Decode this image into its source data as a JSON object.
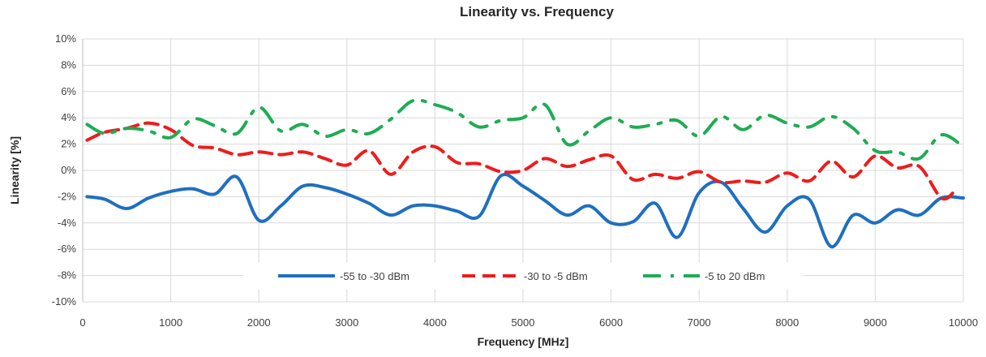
{
  "chart_data": {
    "type": "line",
    "title": "Linearity vs. Frequency",
    "xlabel": "Frequency [MHz]",
    "ylabel": "Linearity [%]",
    "xlim": [
      0,
      10000
    ],
    "ylim": [
      -10,
      10
    ],
    "x_ticks": [
      0,
      1000,
      2000,
      3000,
      4000,
      5000,
      6000,
      7000,
      8000,
      9000,
      10000
    ],
    "y_ticks": [
      -10,
      -8,
      -6,
      -4,
      -2,
      0,
      2,
      4,
      6,
      8,
      10
    ],
    "x_tick_labels": [
      "0",
      "1000",
      "2000",
      "3000",
      "4000",
      "5000",
      "6000",
      "7000",
      "8000",
      "9000",
      "10000"
    ],
    "y_tick_labels": [
      "-10%",
      "-8%",
      "-6%",
      "-4%",
      "-2%",
      "0%",
      "2%",
      "4%",
      "6%",
      "8%",
      "10%"
    ],
    "grid": true,
    "legend_position": "bottom-center",
    "series": [
      {
        "name": "-55 to -30 dBm",
        "color": "#1f6fbf",
        "style": "solid",
        "points": [
          [
            50,
            -2.0
          ],
          [
            250,
            -2.2
          ],
          [
            500,
            -2.9
          ],
          [
            750,
            -2.1
          ],
          [
            1000,
            -1.6
          ],
          [
            1250,
            -1.4
          ],
          [
            1500,
            -1.8
          ],
          [
            1750,
            -0.5
          ],
          [
            2000,
            -3.8
          ],
          [
            2250,
            -2.7
          ],
          [
            2500,
            -1.2
          ],
          [
            2750,
            -1.3
          ],
          [
            3000,
            -1.8
          ],
          [
            3250,
            -2.5
          ],
          [
            3500,
            -3.4
          ],
          [
            3750,
            -2.7
          ],
          [
            4000,
            -2.7
          ],
          [
            4250,
            -3.1
          ],
          [
            4500,
            -3.5
          ],
          [
            4750,
            -0.4
          ],
          [
            5000,
            -1.2
          ],
          [
            5250,
            -2.3
          ],
          [
            5500,
            -3.4
          ],
          [
            5750,
            -2.7
          ],
          [
            6000,
            -4.0
          ],
          [
            6250,
            -3.9
          ],
          [
            6500,
            -2.5
          ],
          [
            6750,
            -5.1
          ],
          [
            7000,
            -1.7
          ],
          [
            7250,
            -0.9
          ],
          [
            7500,
            -2.9
          ],
          [
            7750,
            -4.7
          ],
          [
            8000,
            -2.7
          ],
          [
            8250,
            -2.2
          ],
          [
            8500,
            -5.8
          ],
          [
            8750,
            -3.4
          ],
          [
            9000,
            -4.0
          ],
          [
            9250,
            -3.0
          ],
          [
            9500,
            -3.4
          ],
          [
            9750,
            -2.1
          ],
          [
            10000,
            -2.1
          ]
        ]
      },
      {
        "name": "-30 to -5 dBm",
        "color": "#ee1c1c",
        "style": "dashed",
        "points": [
          [
            50,
            2.3
          ],
          [
            250,
            2.9
          ],
          [
            500,
            3.2
          ],
          [
            750,
            3.6
          ],
          [
            1000,
            3.1
          ],
          [
            1250,
            1.9
          ],
          [
            1500,
            1.7
          ],
          [
            1750,
            1.2
          ],
          [
            2000,
            1.4
          ],
          [
            2250,
            1.2
          ],
          [
            2500,
            1.4
          ],
          [
            2750,
            0.9
          ],
          [
            3000,
            0.4
          ],
          [
            3250,
            1.5
          ],
          [
            3500,
            -0.3
          ],
          [
            3750,
            1.4
          ],
          [
            4000,
            1.8
          ],
          [
            4250,
            0.6
          ],
          [
            4500,
            0.5
          ],
          [
            4750,
            -0.1
          ],
          [
            5000,
            0.0
          ],
          [
            5250,
            0.9
          ],
          [
            5500,
            0.3
          ],
          [
            5750,
            0.8
          ],
          [
            6000,
            1.1
          ],
          [
            6250,
            -0.7
          ],
          [
            6500,
            -0.3
          ],
          [
            6750,
            -0.6
          ],
          [
            7000,
            -0.1
          ],
          [
            7250,
            -0.9
          ],
          [
            7500,
            -0.8
          ],
          [
            7750,
            -0.9
          ],
          [
            8000,
            -0.2
          ],
          [
            8250,
            -0.8
          ],
          [
            8500,
            0.7
          ],
          [
            8750,
            -0.5
          ],
          [
            9000,
            1.1
          ],
          [
            9250,
            0.2
          ],
          [
            9500,
            0.3
          ],
          [
            9750,
            -2.1
          ],
          [
            9900,
            -1.6
          ]
        ]
      },
      {
        "name": "-5 to 20 dBm",
        "color": "#1fac54",
        "style": "dashdot",
        "points": [
          [
            50,
            3.5
          ],
          [
            250,
            2.8
          ],
          [
            500,
            3.2
          ],
          [
            750,
            3.0
          ],
          [
            1000,
            2.5
          ],
          [
            1250,
            3.9
          ],
          [
            1500,
            3.4
          ],
          [
            1750,
            2.8
          ],
          [
            2000,
            4.8
          ],
          [
            2250,
            3.0
          ],
          [
            2500,
            3.5
          ],
          [
            2750,
            2.6
          ],
          [
            3000,
            3.1
          ],
          [
            3250,
            2.8
          ],
          [
            3500,
            3.9
          ],
          [
            3750,
            5.3
          ],
          [
            4000,
            5.0
          ],
          [
            4250,
            4.4
          ],
          [
            4500,
            3.3
          ],
          [
            4750,
            3.8
          ],
          [
            5000,
            4.0
          ],
          [
            5250,
            5.0
          ],
          [
            5500,
            2.0
          ],
          [
            5750,
            3.0
          ],
          [
            6000,
            4.0
          ],
          [
            6250,
            3.3
          ],
          [
            6500,
            3.5
          ],
          [
            6750,
            3.8
          ],
          [
            7000,
            2.6
          ],
          [
            7250,
            4.1
          ],
          [
            7500,
            3.1
          ],
          [
            7750,
            4.2
          ],
          [
            8000,
            3.6
          ],
          [
            8250,
            3.3
          ],
          [
            8500,
            4.1
          ],
          [
            8750,
            3.2
          ],
          [
            9000,
            1.5
          ],
          [
            9250,
            1.4
          ],
          [
            9500,
            0.9
          ],
          [
            9750,
            2.7
          ],
          [
            10000,
            1.8
          ]
        ]
      }
    ]
  }
}
